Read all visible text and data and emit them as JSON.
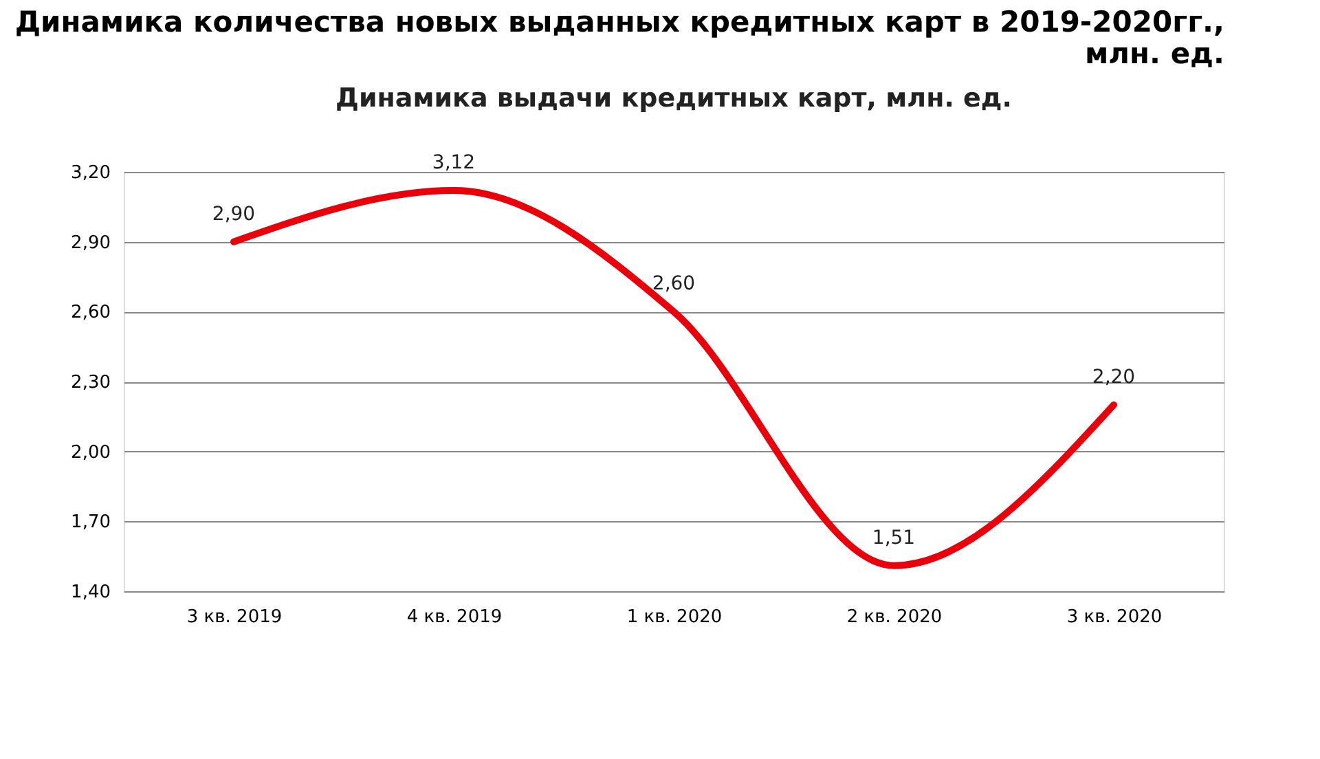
{
  "chart_data": {
    "type": "line",
    "title": "Динамика количества новых выданных кредитных карт в 2019-2020гг.,\nмлн. ед.",
    "subtitle": "Динамика выдачи кредитных карт,  млн. ед.",
    "categories": [
      "3 кв. 2019",
      "4 кв. 2019",
      "1 кв. 2020",
      "2 кв. 2020",
      "3 кв. 2020"
    ],
    "series": [
      {
        "color": "#e8000b",
        "values": [
          2.9,
          3.12,
          2.6,
          1.51,
          2.2
        ],
        "value_labels": [
          "2,90",
          "3,12",
          "2,60",
          "1,51",
          "2,20"
        ]
      }
    ],
    "ylim": [
      1.4,
      3.2
    ],
    "yticks": [
      {
        "value": 1.4,
        "label": "1,40"
      },
      {
        "value": 1.7,
        "label": "1,70"
      },
      {
        "value": 2.0,
        "label": "2,00"
      },
      {
        "value": 2.3,
        "label": "2,30"
      },
      {
        "value": 2.6,
        "label": "2,60"
      },
      {
        "value": 2.9,
        "label": "2,90"
      },
      {
        "value": 3.2,
        "label": "3,20"
      }
    ],
    "grid": "y",
    "marker": "none",
    "line_style": "solid"
  }
}
